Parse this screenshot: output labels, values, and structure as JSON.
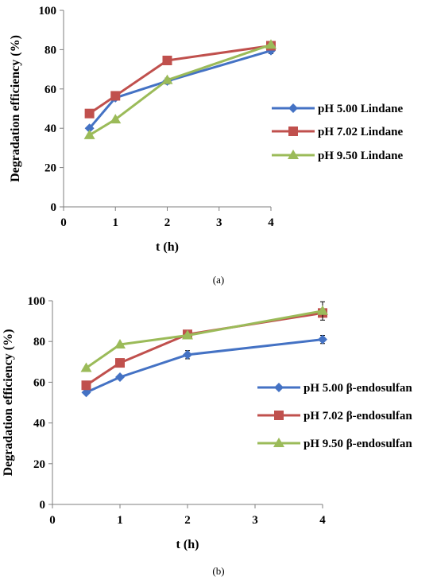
{
  "chart_data": [
    {
      "type": "line",
      "panel_label": "(a)",
      "xlabel": "t (h)",
      "ylabel": "Degradation efficiency (%)",
      "xlim": [
        0,
        4
      ],
      "ylim": [
        0,
        100
      ],
      "xticks": [
        0,
        1,
        2,
        3,
        4
      ],
      "yticks": [
        0,
        20,
        40,
        60,
        80,
        100
      ],
      "grid": false,
      "legend_position": "right",
      "series": [
        {
          "name": "pH 5.00 Lindane",
          "color": "#4472C4",
          "marker": "diamond",
          "x": [
            0.5,
            1,
            2,
            4
          ],
          "y": [
            40,
            55.5,
            64,
            79.5
          ],
          "err": [
            0,
            1,
            1.5,
            1.5
          ]
        },
        {
          "name": "pH 7.02 Lindane",
          "color": "#C0504D",
          "marker": "square",
          "x": [
            0.5,
            1,
            2,
            4
          ],
          "y": [
            47.5,
            56.5,
            74.5,
            82
          ],
          "err": [
            0,
            0,
            0,
            1.5
          ]
        },
        {
          "name": "pH 9.50 Lindane",
          "color": "#9BBB59",
          "marker": "triangle",
          "x": [
            0.5,
            1,
            2,
            4
          ],
          "y": [
            36.5,
            44.5,
            64.5,
            82.5
          ],
          "err": [
            0,
            0,
            0,
            0
          ]
        }
      ]
    },
    {
      "type": "line",
      "panel_label": "(b)",
      "xlabel": "t (h)",
      "ylabel": "Degradation efficiency (%)",
      "xlim": [
        0,
        4
      ],
      "ylim": [
        0,
        100
      ],
      "xticks": [
        0,
        1,
        2,
        3,
        4
      ],
      "yticks": [
        0,
        20,
        40,
        60,
        80,
        100
      ],
      "grid": false,
      "legend_position": "right",
      "series": [
        {
          "name": "pH 5.00 β-endosulfan",
          "color": "#4472C4",
          "marker": "diamond",
          "x": [
            0.5,
            1,
            2,
            4
          ],
          "y": [
            55,
            62.5,
            73.5,
            81
          ],
          "err": [
            0,
            0,
            2,
            2
          ]
        },
        {
          "name": "pH 7.02 β-endosulfan",
          "color": "#C0504D",
          "marker": "square",
          "x": [
            0.5,
            1,
            2,
            4
          ],
          "y": [
            58.5,
            69.5,
            83.5,
            94
          ],
          "err": [
            0,
            0,
            0,
            2
          ]
        },
        {
          "name": "pH 9.50 β-endosulfan",
          "color": "#9BBB59",
          "marker": "triangle",
          "x": [
            0.5,
            1,
            2,
            4
          ],
          "y": [
            67,
            78.5,
            83,
            95
          ],
          "err": [
            0,
            0,
            0,
            4.5
          ]
        }
      ]
    }
  ]
}
